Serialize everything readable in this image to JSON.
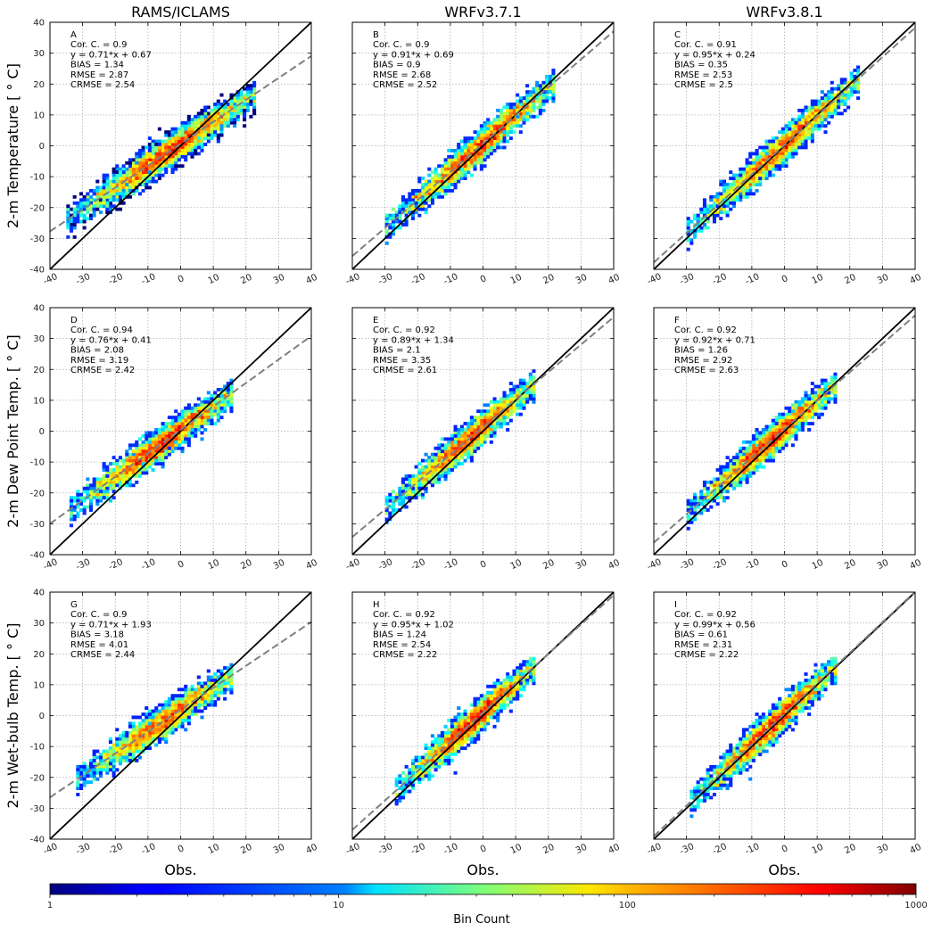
{
  "chart_data": {
    "type": "heatmap",
    "description_free": true,
    "columns": [
      "RAMS/ICLAMS",
      "WRFv3.7.1",
      "WRFv3.8.1"
    ],
    "rows": [
      "2-m Temperature [$^\\circ$C]",
      "2-m Dew Point Temp. [$^\\circ$C]",
      "2-m Wet-bulb Temp. [$^\\circ$C]"
    ],
    "row_labels": [
      "2-m Temperature [ ° C]",
      "2-m Dew Point Temp. [ ° C]",
      "2-m Wet-bulb Temp. [ ° C]"
    ],
    "xlabel": "Obs.",
    "xlim": [
      -40,
      40
    ],
    "ylim": [
      -40,
      40
    ],
    "ticks": [
      -40,
      -30,
      -20,
      -10,
      0,
      10,
      20,
      30,
      40
    ],
    "grid": true,
    "colorbar": {
      "label": "Bin Count",
      "scale": "log",
      "range": [
        1,
        1000
      ],
      "tick_labels": [
        "1",
        "10",
        "100",
        "1000"
      ],
      "colormap": "jet"
    },
    "panels": [
      {
        "letter": "A",
        "cor": "Cor. C. = 0.9",
        "fit": "y = 0.71*x + 0.67",
        "bias": "BIAS = 1.34",
        "rmse": "RMSE = 2.87",
        "crmse": "CRMSE = 2.54",
        "slope": 0.71,
        "intercept": 0.67,
        "obs_range": [
          -35,
          22
        ]
      },
      {
        "letter": "B",
        "cor": "Cor. C. = 0.9",
        "fit": "y = 0.91*x + 0.69",
        "bias": "BIAS = 0.9",
        "rmse": "RMSE = 2.68",
        "crmse": "CRMSE = 2.52",
        "slope": 0.91,
        "intercept": 0.69,
        "obs_range": [
          -30,
          21
        ]
      },
      {
        "letter": "C",
        "cor": "Cor. C. = 0.91",
        "fit": "y = 0.95*x + 0.24",
        "bias": "BIAS = 0.35",
        "rmse": "RMSE = 2.53",
        "crmse": "CRMSE = 2.5",
        "slope": 0.95,
        "intercept": 0.24,
        "obs_range": [
          -30,
          22
        ]
      },
      {
        "letter": "D",
        "cor": "Cor. C. = 0.94",
        "fit": "y = 0.76*x + 0.41",
        "bias": "BIAS = 2.08",
        "rmse": "RMSE = 3.19",
        "crmse": "CRMSE = 2.42",
        "slope": 0.76,
        "intercept": 0.41,
        "obs_range": [
          -34,
          15
        ]
      },
      {
        "letter": "E",
        "cor": "Cor. C. = 0.92",
        "fit": "y = 0.89*x + 1.34",
        "bias": "BIAS = 2.1",
        "rmse": "RMSE = 3.35",
        "crmse": "CRMSE = 2.61",
        "slope": 0.89,
        "intercept": 1.34,
        "obs_range": [
          -30,
          15
        ]
      },
      {
        "letter": "F",
        "cor": "Cor. C. = 0.92",
        "fit": "y = 0.92*x + 0.71",
        "bias": "BIAS = 1.26",
        "rmse": "RMSE = 2.92",
        "crmse": "CRMSE = 2.63",
        "slope": 0.92,
        "intercept": 0.71,
        "obs_range": [
          -30,
          15
        ]
      },
      {
        "letter": "G",
        "cor": "Cor. C. = 0.9",
        "fit": "y = 0.71*x + 1.93",
        "bias": "BIAS = 3.18",
        "rmse": "RMSE = 4.01",
        "crmse": "CRMSE = 2.44",
        "slope": 0.71,
        "intercept": 1.93,
        "obs_range": [
          -32,
          15
        ]
      },
      {
        "letter": "H",
        "cor": "Cor. C. = 0.92",
        "fit": "y = 0.95*x + 1.02",
        "bias": "BIAS = 1.24",
        "rmse": "RMSE = 2.54",
        "crmse": "CRMSE = 2.22",
        "slope": 0.95,
        "intercept": 1.02,
        "obs_range": [
          -27,
          15
        ]
      },
      {
        "letter": "I",
        "cor": "Cor. C. = 0.92",
        "fit": "y = 0.99*x + 0.56",
        "bias": "BIAS = 0.61",
        "rmse": "RMSE = 2.31",
        "crmse": "CRMSE = 2.22",
        "slope": 0.99,
        "intercept": 0.56,
        "obs_range": [
          -29,
          15
        ]
      }
    ]
  }
}
